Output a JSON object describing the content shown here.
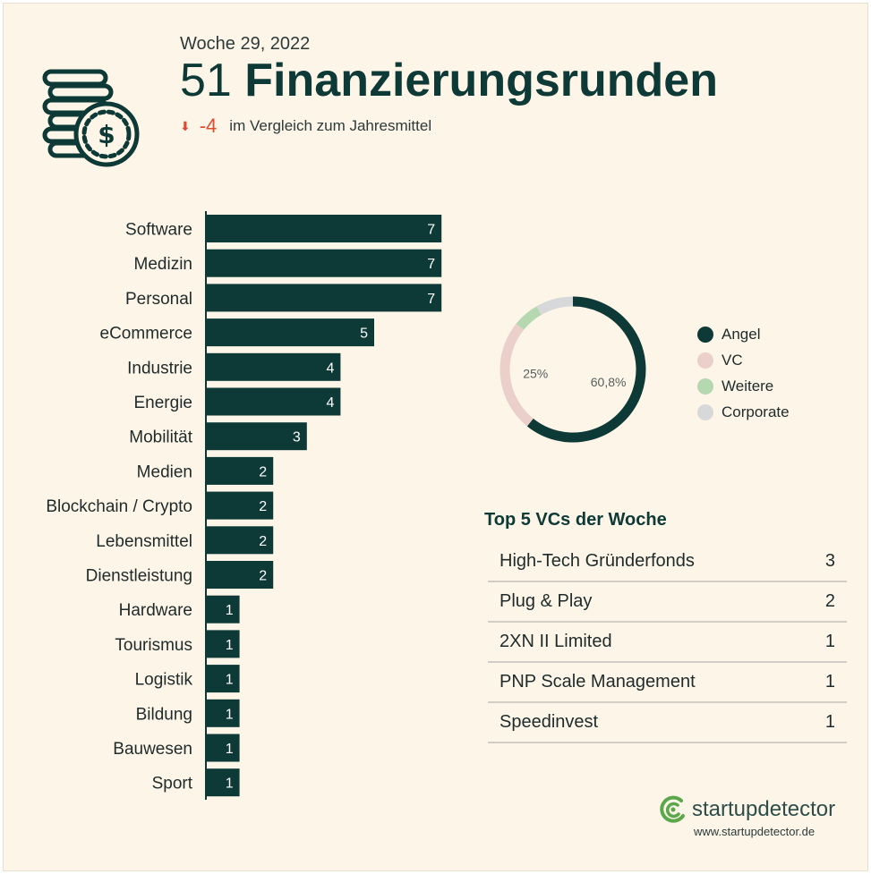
{
  "header": {
    "week": "Woche 29, 2022",
    "count": "51",
    "title": "Finanzierungsrunden",
    "delta": "-4",
    "delta_text": "im Vergleich zum Jahresmittel",
    "icon": "coin-stack-dollar-icon"
  },
  "colors": {
    "primary": "#0d3936",
    "background": "#fdf5e7",
    "delta_red": "#e04a2f",
    "angel": "#0d3936",
    "vc": "#ebcfcb",
    "weitere": "#b5d8b1",
    "corporate": "#d7d8da"
  },
  "chart_data": [
    {
      "type": "bar",
      "orientation": "horizontal",
      "categories": [
        "Software",
        "Medizin",
        "Personal",
        "eCommerce",
        "Industrie",
        "Energie",
        "Mobilität",
        "Medien",
        "Blockchain / Crypto",
        "Lebensmittel",
        "Dienstleistung",
        "Hardware",
        "Tourismus",
        "Logistik",
        "Bildung",
        "Bauwesen",
        "Sport"
      ],
      "values": [
        7,
        7,
        7,
        5,
        4,
        4,
        3,
        2,
        2,
        2,
        2,
        1,
        1,
        1,
        1,
        1,
        1
      ],
      "data_labels": true
    },
    {
      "type": "pie",
      "variant": "donut",
      "slices": [
        {
          "name": "Angel",
          "value": 60.8,
          "label": "60,8%"
        },
        {
          "name": "VC",
          "value": 25,
          "label": "25%"
        },
        {
          "name": "Weitere",
          "value": 5.9,
          "label": ""
        },
        {
          "name": "Corporate",
          "value": 8.3,
          "label": ""
        }
      ],
      "legend_position": "right"
    }
  ],
  "top_vcs": {
    "title": "Top 5 VCs der Woche",
    "rows": [
      {
        "name": "High-Tech Gründerfonds",
        "count": "3"
      },
      {
        "name": "Plug & Play",
        "count": "2"
      },
      {
        "name": "2XN II Limited",
        "count": "1"
      },
      {
        "name": "PNP Scale Management",
        "count": "1"
      },
      {
        "name": "Speedinvest",
        "count": "1"
      }
    ]
  },
  "brand": {
    "name": "startupdetector",
    "url": "www.startupdetector.de",
    "icon": "startupdetector-logo-icon"
  }
}
